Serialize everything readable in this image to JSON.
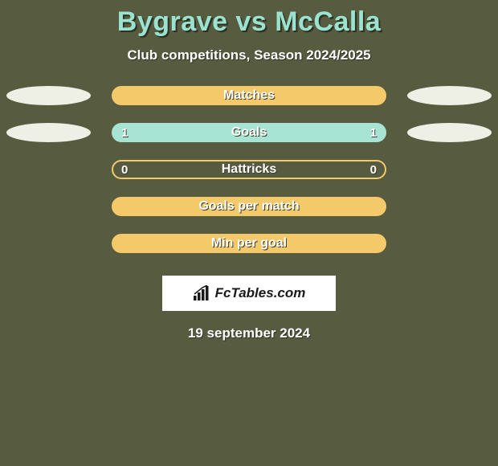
{
  "header": {
    "title": "Bygrave vs McCalla",
    "subtitle": "Club competitions, Season 2024/2025",
    "title_color": "#9be3d1",
    "text_shadow": "#2e3021"
  },
  "background_color": "#575b3f",
  "ellipse_color": "#eef0e6",
  "rows": [
    {
      "label": "Matches",
      "left_value": "",
      "right_value": "",
      "show_ellipses": true,
      "bar_bg": "#f4c96a",
      "border_color": "#f4c96a",
      "left_fill_color": "#f4c96a",
      "right_fill_color": "#f4c96a",
      "left_fill_pct": 50,
      "right_fill_pct": 50
    },
    {
      "label": "Goals",
      "left_value": "1",
      "right_value": "1",
      "show_ellipses": true,
      "bar_bg": "#a8e4d3",
      "border_color": "#a8e4d3",
      "left_fill_color": "#a8e4d3",
      "right_fill_color": "#a8e4d3",
      "left_fill_pct": 50,
      "right_fill_pct": 50
    },
    {
      "label": "Hattricks",
      "left_value": "0",
      "right_value": "0",
      "show_ellipses": false,
      "bar_bg": "transparent",
      "border_color": "#f4c96a",
      "left_fill_color": "transparent",
      "right_fill_color": "transparent",
      "left_fill_pct": 0,
      "right_fill_pct": 0
    },
    {
      "label": "Goals per match",
      "left_value": "",
      "right_value": "",
      "show_ellipses": false,
      "bar_bg": "#f4c96a",
      "border_color": "#f4c96a",
      "left_fill_color": "#f4c96a",
      "right_fill_color": "#f4c96a",
      "left_fill_pct": 50,
      "right_fill_pct": 50
    },
    {
      "label": "Min per goal",
      "left_value": "",
      "right_value": "",
      "show_ellipses": false,
      "bar_bg": "#f4c96a",
      "border_color": "#f4c96a",
      "left_fill_color": "#f4c96a",
      "right_fill_color": "#f4c96a",
      "left_fill_pct": 50,
      "right_fill_pct": 50
    }
  ],
  "footer": {
    "logo_text": "FcTables.com",
    "date": "19 september 2024",
    "logo_bg": "#ffffff"
  }
}
